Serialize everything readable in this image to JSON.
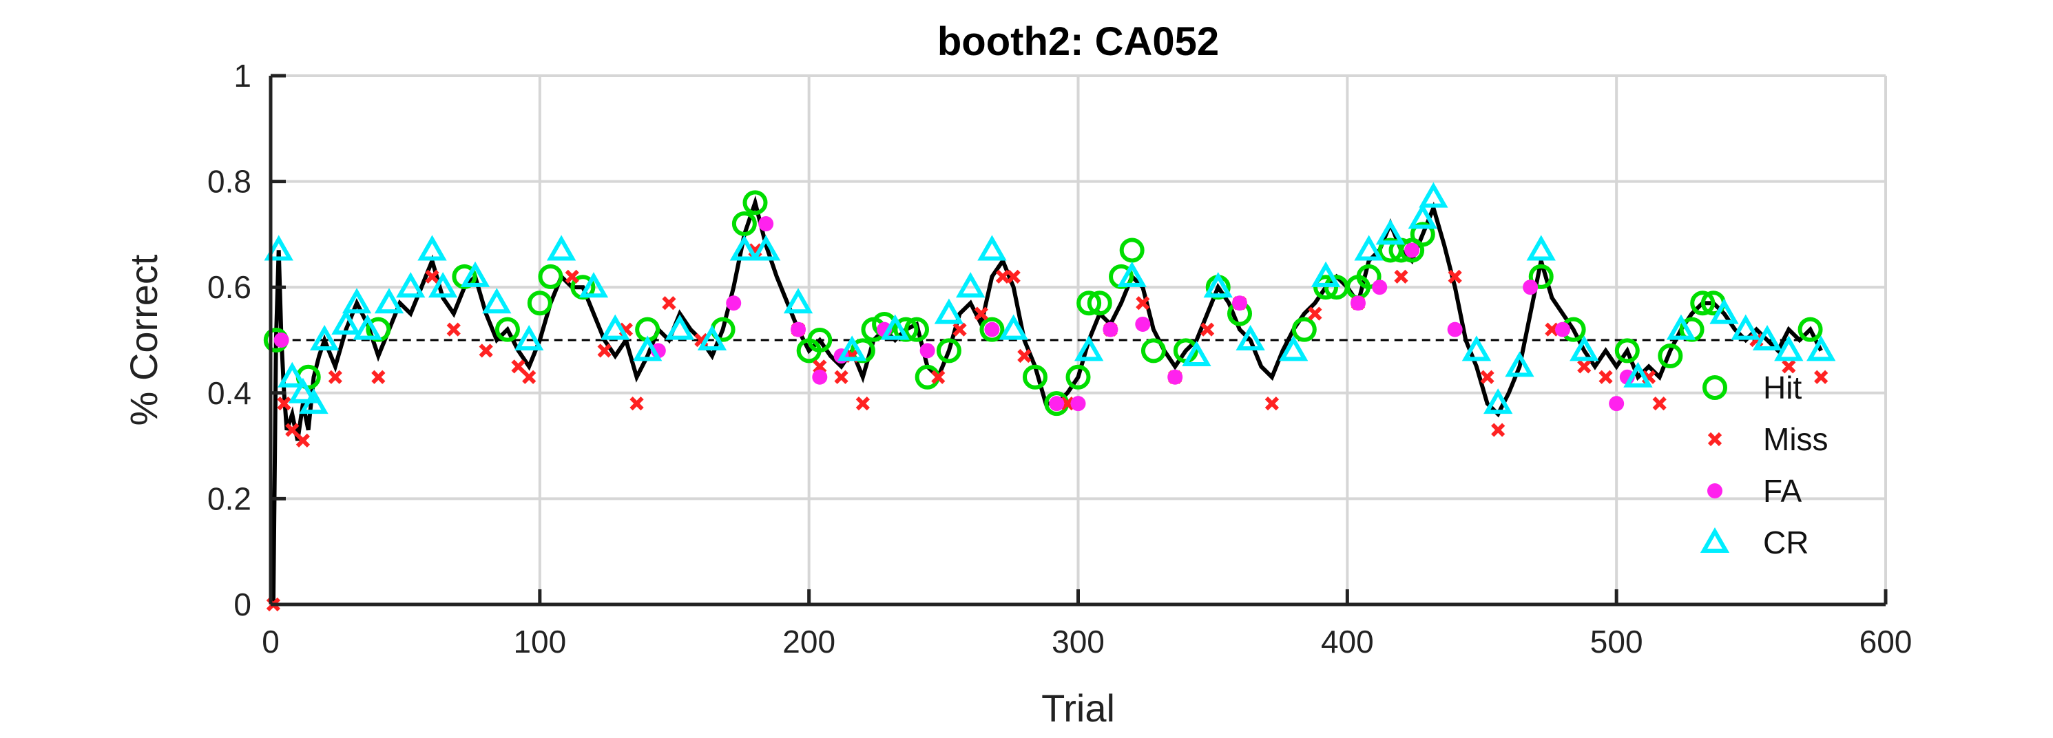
{
  "chart_data": {
    "type": "line",
    "title": "booth2: CA052",
    "xlabel": "Trial",
    "ylabel": "% Correct",
    "xlim": [
      0,
      600
    ],
    "ylim": [
      0,
      1
    ],
    "xticks": [
      0,
      100,
      200,
      300,
      400,
      500,
      600
    ],
    "yticks": [
      0,
      0.2,
      0.4,
      0.6,
      0.8,
      1
    ],
    "xtick_labels": [
      "0",
      "100",
      "200",
      "300",
      "400",
      "500",
      "600"
    ],
    "ytick_labels": [
      "0",
      "0.2",
      "0.4",
      "0.6",
      "0.8",
      "1"
    ],
    "grid": true,
    "reference_line": {
      "y": 0.5,
      "style": "dashed"
    },
    "legend_placement": "right",
    "x": [
      1,
      2,
      3,
      4,
      5,
      6,
      8,
      10,
      12,
      14,
      16,
      18,
      20,
      24,
      28,
      32,
      36,
      40,
      44,
      48,
      52,
      56,
      60,
      64,
      68,
      72,
      76,
      80,
      84,
      88,
      92,
      96,
      100,
      104,
      108,
      112,
      116,
      120,
      124,
      128,
      132,
      136,
      140,
      144,
      148,
      152,
      156,
      160,
      164,
      168,
      172,
      176,
      180,
      184,
      188,
      192,
      196,
      200,
      204,
      208,
      212,
      216,
      220,
      224,
      228,
      232,
      236,
      240,
      244,
      248,
      252,
      256,
      260,
      264,
      268,
      272,
      276,
      280,
      284,
      288,
      292,
      296,
      300,
      304,
      308,
      312,
      316,
      320,
      324,
      328,
      332,
      336,
      340,
      344,
      348,
      352,
      356,
      360,
      364,
      368,
      372,
      376,
      380,
      384,
      388,
      392,
      396,
      400,
      404,
      408,
      412,
      416,
      420,
      424,
      428,
      432,
      436,
      440,
      444,
      448,
      452,
      456,
      460,
      464,
      468,
      472,
      476,
      480,
      484,
      488,
      492,
      496,
      500,
      504,
      508,
      512,
      516,
      520,
      524,
      528,
      532,
      536,
      540,
      544,
      548,
      552,
      556,
      560,
      564,
      568,
      572,
      576
    ],
    "y": [
      0,
      0.5,
      0.67,
      0.5,
      0.4,
      0.33,
      0.36,
      0.31,
      0.38,
      0.33,
      0.43,
      0.47,
      0.5,
      0.45,
      0.52,
      0.57,
      0.53,
      0.47,
      0.52,
      0.57,
      0.55,
      0.6,
      0.65,
      0.58,
      0.55,
      0.6,
      0.62,
      0.55,
      0.5,
      0.52,
      0.48,
      0.45,
      0.5,
      0.57,
      0.62,
      0.6,
      0.6,
      0.55,
      0.5,
      0.47,
      0.5,
      0.43,
      0.47,
      0.52,
      0.5,
      0.55,
      0.52,
      0.5,
      0.47,
      0.52,
      0.6,
      0.7,
      0.76,
      0.68,
      0.62,
      0.57,
      0.52,
      0.48,
      0.5,
      0.47,
      0.45,
      0.48,
      0.43,
      0.5,
      0.52,
      0.5,
      0.52,
      0.53,
      0.45,
      0.43,
      0.48,
      0.55,
      0.57,
      0.53,
      0.62,
      0.65,
      0.6,
      0.5,
      0.45,
      0.38,
      0.38,
      0.4,
      0.43,
      0.5,
      0.55,
      0.53,
      0.57,
      0.62,
      0.6,
      0.52,
      0.48,
      0.45,
      0.48,
      0.5,
      0.55,
      0.6,
      0.57,
      0.52,
      0.5,
      0.45,
      0.43,
      0.48,
      0.52,
      0.55,
      0.57,
      0.6,
      0.62,
      0.6,
      0.57,
      0.65,
      0.67,
      0.72,
      0.67,
      0.65,
      0.7,
      0.75,
      0.68,
      0.6,
      0.5,
      0.45,
      0.38,
      0.36,
      0.4,
      0.45,
      0.55,
      0.65,
      0.58,
      0.55,
      0.52,
      0.48,
      0.45,
      0.48,
      0.45,
      0.48,
      0.43,
      0.45,
      0.43,
      0.48,
      0.52,
      0.55,
      0.57,
      0.57,
      0.55,
      0.52,
      0.5,
      0.52,
      0.5,
      0.48,
      0.52,
      0.5,
      0.52,
      0.48
    ],
    "series": [
      {
        "name": "Hit",
        "color": "#00dd00",
        "marker": "circle-open",
        "x": [
          2,
          14,
          40,
          72,
          88,
          100,
          104,
          116,
          140,
          168,
          176,
          180,
          200,
          204,
          220,
          224,
          228,
          236,
          240,
          244,
          252,
          268,
          284,
          292,
          300,
          304,
          308,
          316,
          320,
          328,
          340,
          352,
          360,
          384,
          392,
          396,
          404,
          408,
          416,
          420,
          424,
          428,
          472,
          484,
          504,
          520,
          528,
          532,
          536,
          572
        ],
        "y": [
          0.5,
          0.43,
          0.52,
          0.62,
          0.52,
          0.57,
          0.62,
          0.6,
          0.52,
          0.52,
          0.72,
          0.76,
          0.48,
          0.5,
          0.48,
          0.52,
          0.53,
          0.52,
          0.52,
          0.43,
          0.48,
          0.52,
          0.43,
          0.38,
          0.43,
          0.57,
          0.57,
          0.62,
          0.67,
          0.48,
          0.48,
          0.6,
          0.55,
          0.52,
          0.6,
          0.6,
          0.6,
          0.62,
          0.67,
          0.67,
          0.67,
          0.7,
          0.62,
          0.52,
          0.48,
          0.47,
          0.52,
          0.57,
          0.57,
          0.52
        ]
      },
      {
        "name": "Miss",
        "color": "#ff2222",
        "marker": "x",
        "x": [
          1,
          5,
          8,
          12,
          24,
          40,
          60,
          68,
          80,
          92,
          96,
          112,
          124,
          132,
          136,
          148,
          160,
          180,
          196,
          204,
          212,
          216,
          220,
          248,
          256,
          264,
          272,
          276,
          280,
          296,
          312,
          324,
          336,
          348,
          360,
          372,
          388,
          404,
          420,
          440,
          452,
          456,
          476,
          488,
          496,
          512,
          516,
          552,
          564,
          576
        ],
        "y": [
          0,
          0.38,
          0.33,
          0.31,
          0.43,
          0.43,
          0.62,
          0.52,
          0.48,
          0.45,
          0.43,
          0.62,
          0.48,
          0.52,
          0.38,
          0.57,
          0.5,
          0.67,
          0.52,
          0.45,
          0.43,
          0.47,
          0.38,
          0.43,
          0.52,
          0.55,
          0.62,
          0.62,
          0.47,
          0.38,
          0.52,
          0.57,
          0.43,
          0.52,
          0.57,
          0.38,
          0.55,
          0.57,
          0.62,
          0.62,
          0.43,
          0.33,
          0.52,
          0.45,
          0.43,
          0.43,
          0.38,
          0.5,
          0.45,
          0.43
        ]
      },
      {
        "name": "FA",
        "color": "#ff22ee",
        "marker": "dot",
        "x": [
          4,
          144,
          172,
          184,
          196,
          204,
          212,
          228,
          244,
          268,
          292,
          300,
          312,
          324,
          336,
          360,
          404,
          412,
          424,
          440,
          468,
          480,
          500,
          504
        ],
        "y": [
          0.5,
          0.48,
          0.57,
          0.72,
          0.52,
          0.43,
          0.47,
          0.52,
          0.48,
          0.52,
          0.38,
          0.38,
          0.52,
          0.53,
          0.43,
          0.57,
          0.57,
          0.6,
          0.67,
          0.52,
          0.6,
          0.52,
          0.38,
          0.43
        ]
      },
      {
        "name": "CR",
        "color": "#00eeff",
        "marker": "triangle-open",
        "x": [
          3,
          8,
          12,
          16,
          20,
          28,
          32,
          36,
          44,
          52,
          60,
          64,
          76,
          84,
          96,
          108,
          120,
          128,
          140,
          152,
          164,
          176,
          184,
          196,
          216,
          232,
          252,
          260,
          268,
          276,
          304,
          320,
          344,
          352,
          364,
          380,
          392,
          408,
          416,
          428,
          432,
          448,
          456,
          464,
          472,
          488,
          508,
          524,
          540,
          548,
          556,
          564,
          576
        ],
        "y": [
          0.67,
          0.43,
          0.4,
          0.38,
          0.5,
          0.53,
          0.57,
          0.52,
          0.57,
          0.6,
          0.67,
          0.6,
          0.62,
          0.57,
          0.5,
          0.67,
          0.6,
          0.52,
          0.48,
          0.52,
          0.5,
          0.67,
          0.67,
          0.57,
          0.48,
          0.52,
          0.55,
          0.6,
          0.67,
          0.52,
          0.48,
          0.62,
          0.47,
          0.6,
          0.5,
          0.48,
          0.62,
          0.67,
          0.7,
          0.73,
          0.77,
          0.48,
          0.38,
          0.45,
          0.67,
          0.48,
          0.43,
          0.52,
          0.55,
          0.52,
          0.5,
          0.48,
          0.48
        ]
      }
    ]
  }
}
